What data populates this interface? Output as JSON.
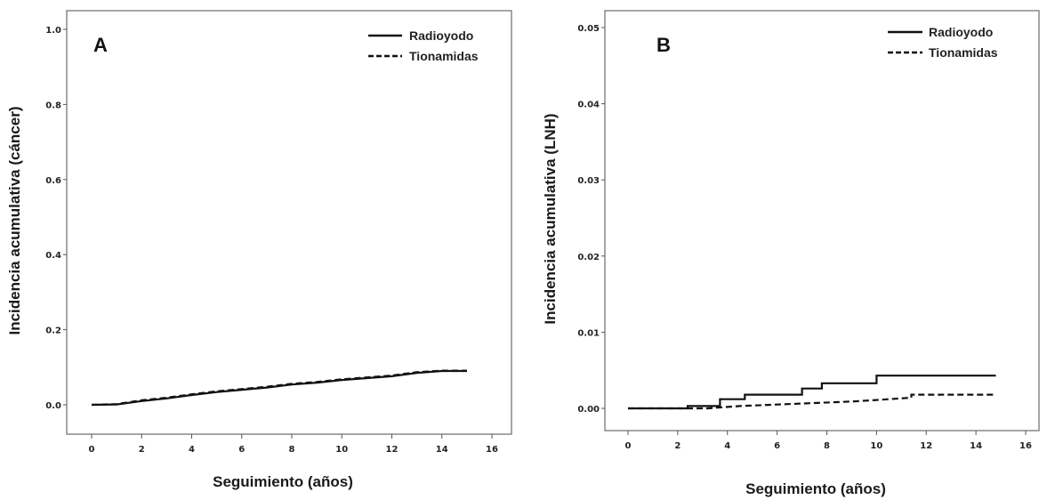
{
  "chart_data": [
    {
      "type": "line",
      "panel": "A",
      "xlabel": "Seguimiento (años)",
      "ylabel": "Incidencia acumulativa (cáncer)",
      "xlim": [
        0,
        16
      ],
      "ylim": [
        0,
        1.0
      ],
      "x_ticks": [
        "0",
        "2",
        "4",
        "6",
        "8",
        "10",
        "12",
        "14",
        "16"
      ],
      "y_ticks": [
        "0.0",
        "0.2",
        "0.4",
        "0.6",
        "0.8",
        "1.0"
      ],
      "legend_position": "top-right",
      "series": [
        {
          "name": "Radioyodo",
          "style": "solid",
          "x": [
            0,
            1,
            2,
            3,
            4,
            5,
            6,
            7,
            8,
            9,
            10,
            11,
            12,
            13,
            14,
            15
          ],
          "y": [
            0,
            0.001,
            0.01,
            0.017,
            0.026,
            0.034,
            0.04,
            0.046,
            0.054,
            0.059,
            0.066,
            0.071,
            0.076,
            0.085,
            0.09,
            0.09
          ]
        },
        {
          "name": "Tionamidas",
          "style": "dashed",
          "x": [
            0,
            1,
            2,
            3,
            4,
            5,
            6,
            7,
            8,
            9,
            10,
            11,
            12,
            13,
            14,
            15
          ],
          "y": [
            0,
            0.002,
            0.012,
            0.019,
            0.028,
            0.036,
            0.042,
            0.048,
            0.056,
            0.061,
            0.068,
            0.073,
            0.078,
            0.087,
            0.091,
            0.091
          ]
        }
      ]
    },
    {
      "type": "line",
      "panel": "B",
      "xlabel": "Seguimiento (años)",
      "ylabel": "Incidencia acumulativa (LNH)",
      "xlim": [
        0,
        16
      ],
      "ylim": [
        0,
        0.05
      ],
      "x_ticks": [
        "0",
        "2",
        "4",
        "6",
        "8",
        "10",
        "12",
        "14",
        "16"
      ],
      "y_ticks": [
        "0.00",
        "0.01",
        "0.02",
        "0.03",
        "0.04",
        "0.05"
      ],
      "legend_position": "top-right",
      "series": [
        {
          "name": "Radioyodo",
          "style": "solid",
          "x": [
            0,
            2.4,
            2.4,
            3.7,
            3.7,
            4.7,
            4.7,
            7.0,
            7.0,
            7.8,
            7.8,
            10.0,
            10.0,
            14.8
          ],
          "y": [
            0,
            0,
            0.0003,
            0.0003,
            0.0012,
            0.0012,
            0.0018,
            0.0018,
            0.0026,
            0.0026,
            0.0033,
            0.0033,
            0.0043,
            0.0043
          ]
        },
        {
          "name": "Tionamidas",
          "style": "dashed",
          "x": [
            0,
            3.2,
            4.5,
            6.0,
            7.5,
            9.0,
            10.0,
            11.4,
            11.4,
            14.8
          ],
          "y": [
            0,
            0,
            0.0003,
            0.0005,
            0.0007,
            0.0009,
            0.0011,
            0.0014,
            0.0018,
            0.0018
          ]
        }
      ]
    }
  ]
}
